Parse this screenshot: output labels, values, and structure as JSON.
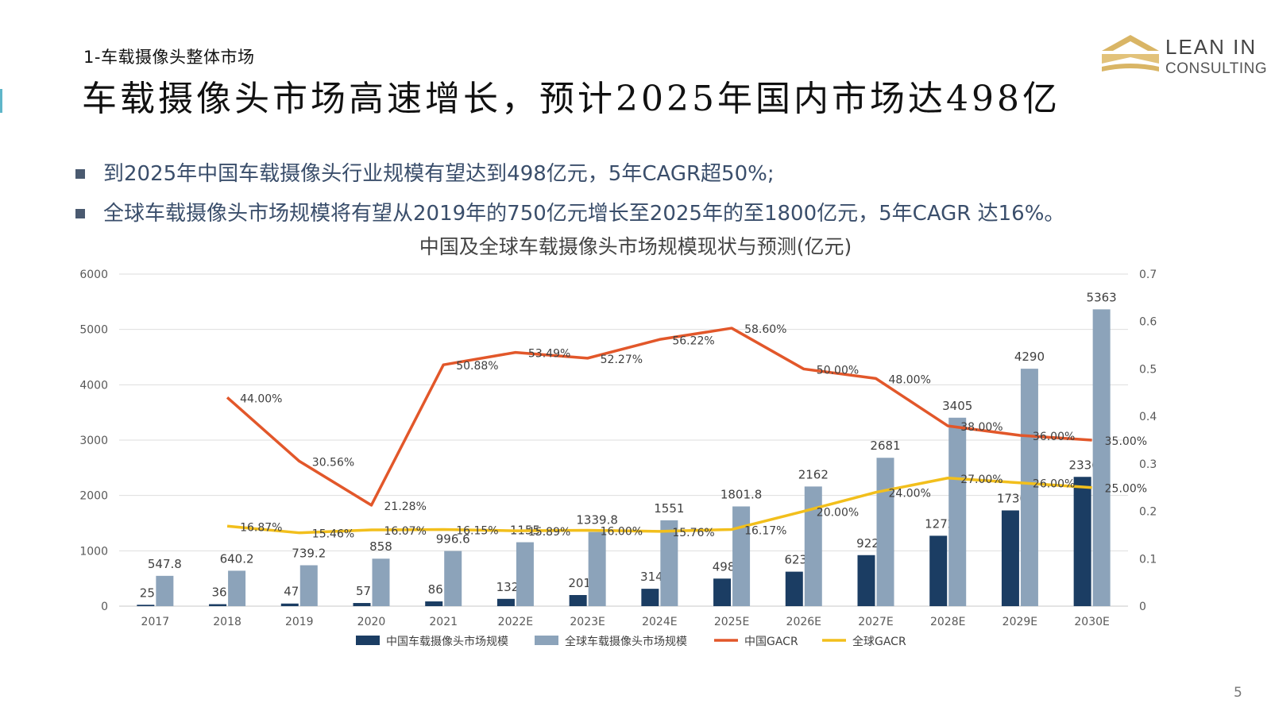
{
  "header": {
    "section_label": "1-车载摄像头整体市场",
    "title": "车载摄像头市场高速增长，预计2025年国内市场达498亿"
  },
  "logo": {
    "word1": "LEAN IN",
    "word2": "CONSULTING",
    "color": "#d9b565"
  },
  "bullets": [
    "到2025年中国车载摄像头行业规模有望达到498亿元，5年CAGR超50%;",
    "全球车载摄像头市场规模将有望从2019年的750亿元增长至2025年的至1800亿元，5年CAGR 达16%。"
  ],
  "chart_data": {
    "type": "bar",
    "title": "中国及全球车载摄像头市场规模现状与预测(亿元)",
    "categories": [
      "2017",
      "2018",
      "2019",
      "2020",
      "2021",
      "2022E",
      "2023E",
      "2024E",
      "2025E",
      "2026E",
      "2027E",
      "2028E",
      "2029E",
      "2030E"
    ],
    "ylim": [
      0,
      6000
    ],
    "yticks": [
      "0",
      "1000",
      "2000",
      "3000",
      "4000",
      "5000",
      "6000"
    ],
    "y2lim": [
      0,
      0.7
    ],
    "y2ticks": [
      "0",
      "0.1",
      "0.2",
      "0.3",
      "0.4",
      "0.5",
      "0.6",
      "0.7"
    ],
    "grid": true,
    "legend_position": "bottom",
    "bar_series": [
      {
        "name": "中国车载摄像头市场规模",
        "color": "#1b3d63",
        "values": [
          25,
          36,
          47,
          57,
          86,
          132,
          201,
          314,
          498,
          623,
          922,
          1272,
          1730,
          2336
        ],
        "labels": [
          "25",
          "36",
          "47",
          "57",
          "86",
          "132",
          "201",
          "314",
          "498",
          "623",
          "922",
          "1272",
          "1730",
          "2336"
        ]
      },
      {
        "name": "全球车载摄像头市场规模",
        "color": "#8ca3ba",
        "values": [
          547.8,
          640.2,
          739.2,
          858,
          996.6,
          1155,
          1339.8,
          1551,
          1801.8,
          2162,
          2681,
          3405,
          4290,
          5363
        ],
        "labels": [
          "547.8",
          "640.2",
          "739.2",
          "858",
          "996.6",
          "1155",
          "1339.8",
          "1551",
          "1801.8",
          "2162",
          "2681",
          "3405",
          "4290",
          "5363"
        ]
      }
    ],
    "line_series": [
      {
        "name": "中国GACR",
        "color": "#e2572a",
        "values": [
          null,
          0.44,
          0.3056,
          0.2128,
          0.5088,
          0.5349,
          0.5227,
          0.5622,
          0.586,
          0.5,
          0.48,
          0.38,
          0.36,
          0.35
        ],
        "labels": [
          "",
          "44.00%",
          "30.56%",
          "21.28%",
          "50.88%",
          "53.49%",
          "52.27%",
          "56.22%",
          "58.60%",
          "50.00%",
          "48.00%",
          "38.00%",
          "36.00%",
          "35.00%"
        ]
      },
      {
        "name": "全球GACR",
        "color": "#f2bf1c",
        "values": [
          null,
          0.1687,
          0.1546,
          0.1607,
          0.1615,
          0.1589,
          0.16,
          0.1576,
          0.1617,
          0.2,
          0.24,
          0.27,
          0.26,
          0.25
        ],
        "labels": [
          "",
          "16.87%",
          "15.46%",
          "16.07%",
          "16.15%",
          "15.89%",
          "16.00%",
          "15.76%",
          "16.17%",
          "20.00%",
          "24.00%",
          "27.00%",
          "26.00%",
          "25.00%"
        ]
      }
    ]
  },
  "page_number": "5"
}
